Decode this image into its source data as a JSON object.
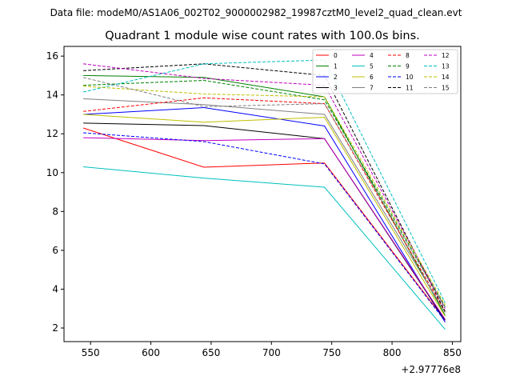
{
  "chart_data": {
    "type": "line",
    "suptitle": "Data file: modeM0/AS1A06_002T02_9000002982_19987cztM0_level2_quad_clean.evt",
    "title": "Quadrant 1 module wise count rates with 100.0s bins.",
    "xlabel": "",
    "ylabel": "",
    "x_offset_label": "+2.97776e8",
    "xlim": [
      528,
      857
    ],
    "ylim": [
      1.3,
      16.5
    ],
    "xticks": [
      550,
      600,
      650,
      700,
      750,
      800,
      850
    ],
    "yticks": [
      2,
      4,
      6,
      8,
      10,
      12,
      14,
      16
    ],
    "x": [
      544,
      644,
      744,
      844
    ],
    "legend_position": "top-right",
    "series": [
      {
        "name": "0",
        "color": "#ff0000",
        "dash": "solid",
        "values": [
          12.3,
          10.28,
          10.5,
          2.4
        ]
      },
      {
        "name": "1",
        "color": "#008000",
        "dash": "solid",
        "values": [
          15.0,
          14.9,
          13.9,
          2.65
        ]
      },
      {
        "name": "2",
        "color": "#0000ff",
        "dash": "solid",
        "values": [
          13.0,
          13.35,
          12.4,
          2.3
        ]
      },
      {
        "name": "3",
        "color": "#000000",
        "dash": "solid",
        "values": [
          12.55,
          12.42,
          11.75,
          2.4
        ]
      },
      {
        "name": "4",
        "color": "#bf00bf",
        "dash": "solid",
        "values": [
          11.8,
          11.65,
          11.75,
          2.45
        ]
      },
      {
        "name": "5",
        "color": "#00bfbf",
        "dash": "solid",
        "values": [
          10.3,
          9.72,
          9.25,
          1.93
        ]
      },
      {
        "name": "6",
        "color": "#bfbf00",
        "dash": "solid",
        "values": [
          13.0,
          12.6,
          12.85,
          2.6
        ]
      },
      {
        "name": "7",
        "color": "#808080",
        "dash": "solid",
        "values": [
          13.8,
          13.5,
          13.0,
          2.8
        ]
      },
      {
        "name": "8",
        "color": "#ff0000",
        "dash": "dashed",
        "values": [
          13.15,
          13.85,
          13.55,
          2.85
        ]
      },
      {
        "name": "9",
        "color": "#008000",
        "dash": "dashed",
        "values": [
          14.5,
          14.75,
          13.75,
          3.1
        ]
      },
      {
        "name": "10",
        "color": "#0000ff",
        "dash": "dashed",
        "values": [
          12.05,
          11.6,
          10.45,
          2.35
        ]
      },
      {
        "name": "11",
        "color": "#000000",
        "dash": "dashed",
        "values": [
          15.25,
          15.6,
          15.0,
          2.85
        ]
      },
      {
        "name": "12",
        "color": "#bf00bf",
        "dash": "dashed",
        "values": [
          15.6,
          14.85,
          14.5,
          3.0
        ]
      },
      {
        "name": "13",
        "color": "#00bfbf",
        "dash": "dashed",
        "values": [
          14.15,
          15.6,
          15.8,
          3.3
        ]
      },
      {
        "name": "14",
        "color": "#bfbf00",
        "dash": "dashed",
        "values": [
          14.45,
          14.05,
          13.9,
          3.2
        ]
      },
      {
        "name": "15",
        "color": "#808080",
        "dash": "dashed",
        "values": [
          14.9,
          13.4,
          13.55,
          3.05
        ]
      }
    ]
  }
}
